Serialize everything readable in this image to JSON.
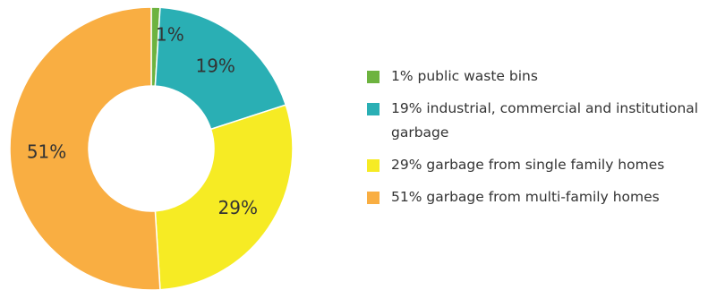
{
  "chart_data": {
    "type": "pie",
    "donut": true,
    "title": "",
    "slices": [
      {
        "label": "1%",
        "value": 1,
        "legend": "1% public waste bins",
        "color": "#6db33f"
      },
      {
        "label": "19%",
        "value": 19,
        "legend": "19% industrial, commercial and institutional garbage",
        "color": "#2aafb4"
      },
      {
        "label": "29%",
        "value": 29,
        "legend": "29% garbage from single family homes",
        "color": "#f6eb24"
      },
      {
        "label": "51%",
        "value": 51,
        "legend": "51% garbage from multi-family homes",
        "color": "#f9ae42"
      }
    ],
    "legend_position": "right"
  }
}
